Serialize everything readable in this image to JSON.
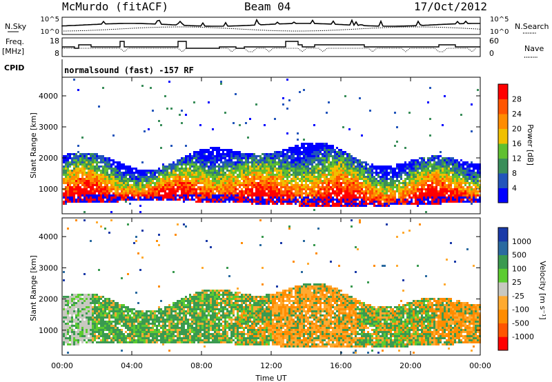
{
  "header": {
    "radar": "McMurdo (fitACF)",
    "beam": "Beam 04",
    "date": "17/Oct/2012"
  },
  "nsky_panel": {
    "left_label": "N.Sky",
    "right_label": "N.Search",
    "left_ticks": [
      "10^5",
      "10^0"
    ],
    "right_ticks": [
      "10^5",
      "10^0"
    ]
  },
  "freq_panel": {
    "left_label_1": "Freq.",
    "left_label_2": "[MHz]",
    "right_label": "Nave",
    "left_ticks": [
      "18",
      "8"
    ],
    "right_ticks": [
      "60",
      "0"
    ]
  },
  "cpid": {
    "label": "CPID",
    "value": "normalsound (fast) -157 RF"
  },
  "chart_data": [
    {
      "type": "heatmap",
      "name": "power",
      "ylabel": "Slant Range [km]",
      "xlabel": "Time UT",
      "y_ticks": [
        "1000",
        "2000",
        "3000",
        "4000"
      ],
      "ylim": [
        200,
        4600
      ],
      "colorbar": {
        "label": "Power [dB]",
        "ticks": [
          "4",
          "8",
          "12",
          "16",
          "20",
          "24",
          "28"
        ],
        "colors": [
          "#0000ff",
          "#2255bb",
          "#3a8e5a",
          "#60c030",
          "#f0c000",
          "#ff8c00",
          "#ff5500",
          "#ff0000"
        ]
      }
    },
    {
      "type": "heatmap",
      "name": "velocity",
      "ylabel": "Slant Range [km]",
      "xlabel": "Time UT",
      "y_ticks": [
        "1000",
        "2000",
        "3000",
        "4000"
      ],
      "ylim": [
        200,
        4600
      ],
      "colorbar": {
        "label": "Velocity [m s⁻¹]",
        "ticks": [
          "1000",
          "500",
          "100",
          "25",
          "-25",
          "-100",
          "-500",
          "-1000"
        ],
        "colors": [
          "#1a3aa8",
          "#2a6aa0",
          "#3a9a50",
          "#5ccc30",
          "#c8c8c0",
          "#ffaa30",
          "#ff8c00",
          "#ff5500",
          "#ff0000"
        ]
      }
    }
  ],
  "x_axis": {
    "label": "Time UT",
    "ticks": [
      "00:00",
      "04:00",
      "08:00",
      "12:00",
      "16:00",
      "20:00",
      "00:00"
    ]
  }
}
